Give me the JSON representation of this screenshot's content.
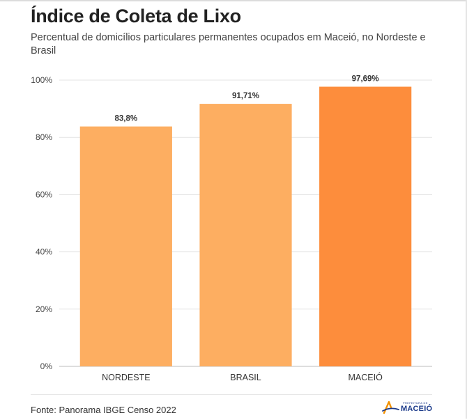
{
  "header": {
    "title": "Índice de Coleta de Lixo",
    "subtitle": "Percentual de domicílios particulares permanentes ocupados em Maceió, no Nordeste e Brasil"
  },
  "chart_data": {
    "type": "bar",
    "categories": [
      "NORDESTE",
      "BRASIL",
      "MACEIÓ"
    ],
    "values": [
      83.8,
      91.71,
      97.69
    ],
    "value_labels": [
      "83,8%",
      "91,71%",
      "97,69%"
    ],
    "bar_colors": [
      "#fdae61",
      "#fdae61",
      "#fd8d3c"
    ],
    "ylim": [
      0,
      100
    ],
    "yticks": [
      0,
      20,
      40,
      60,
      80,
      100
    ],
    "ytick_labels": [
      "0%",
      "20%",
      "40%",
      "60%",
      "80%",
      "100%"
    ],
    "grid": true
  },
  "footer": {
    "source": "Fonte: Panorama IBGE Censo 2022",
    "logo_small": "PREFEITURA DE",
    "logo_main": "MACEIÓ"
  },
  "colors": {
    "logo_blue": "#1b3a8a",
    "logo_orange": "#f39200"
  }
}
